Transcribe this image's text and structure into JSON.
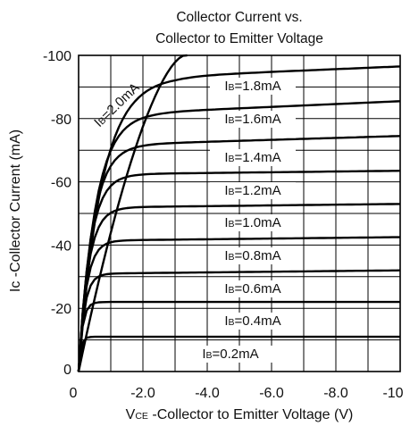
{
  "chart_data": {
    "type": "line",
    "title_lines": [
      "Collector Current vs.",
      "Collector to Emitter Voltage"
    ],
    "ylabel": "Ic -Collector Current (mA)",
    "xlabel": {
      "prefix": "V",
      "sub": "CE",
      "rest": " -Collector to Emitter Voltage (V)"
    },
    "xlim": [
      0,
      -10
    ],
    "ylim": [
      0,
      -100
    ],
    "x_ticks": [
      "0",
      "-2.0",
      "-4.0",
      "-6.0",
      "-8.0",
      "-10"
    ],
    "y_ticks": [
      "0",
      "-20",
      "-40",
      "-60",
      "-80",
      "-100"
    ],
    "grid": true,
    "series": [
      {
        "name": "IB=0.2mA",
        "label": {
          "prefix": "I",
          "sub": "B",
          "rest": "=0.2mA"
        },
        "sat_y": -11,
        "end_y": -11,
        "knee_x": -0.3
      },
      {
        "name": "IB=0.4mA",
        "label": {
          "prefix": "I",
          "sub": "B",
          "rest": "=0.4mA"
        },
        "sat_y": -22,
        "end_y": -22,
        "knee_x": -0.5
      },
      {
        "name": "IB=0.6mA",
        "label": {
          "prefix": "I",
          "sub": "B",
          "rest": "=0.6mA"
        },
        "sat_y": -31,
        "end_y": -32,
        "knee_x": -0.75
      },
      {
        "name": "IB=0.8mA",
        "label": {
          "prefix": "I",
          "sub": "B",
          "rest": "=0.8mA"
        },
        "sat_y": -41.5,
        "end_y": -42.5,
        "knee_x": -1.0
      },
      {
        "name": "IB=1.0mA",
        "label": {
          "prefix": "I",
          "sub": "B",
          "rest": "=1.0mA"
        },
        "sat_y": -52,
        "end_y": -53,
        "knee_x": -1.25
      },
      {
        "name": "IB=1.2mA",
        "label": {
          "prefix": "I",
          "sub": "B",
          "rest": "=1.2mA"
        },
        "sat_y": -62.5,
        "end_y": -63.5,
        "knee_x": -1.5
      },
      {
        "name": "IB=1.4mA",
        "label": {
          "prefix": "I",
          "sub": "B",
          "rest": "=1.4mA"
        },
        "sat_y": -72,
        "end_y": -74.5,
        "knee_x": -1.8
      },
      {
        "name": "IB=1.6mA",
        "label": {
          "prefix": "I",
          "sub": "B",
          "rest": "=1.6mA"
        },
        "sat_y": -82,
        "end_y": -85.5,
        "knee_x": -2.2
      },
      {
        "name": "IB=1.8mA",
        "label": {
          "prefix": "I",
          "sub": "B",
          "rest": "=1.8mA"
        },
        "sat_y": -93.5,
        "end_y": -96.5,
        "knee_x": -3.0
      },
      {
        "name": "IB=2.0mA",
        "label": {
          "prefix": "I",
          "sub": "B",
          "rest": "=2.0mA"
        },
        "sat_y": -100,
        "end_y": -100,
        "knee_x": -3.3,
        "clipped": true
      }
    ]
  }
}
